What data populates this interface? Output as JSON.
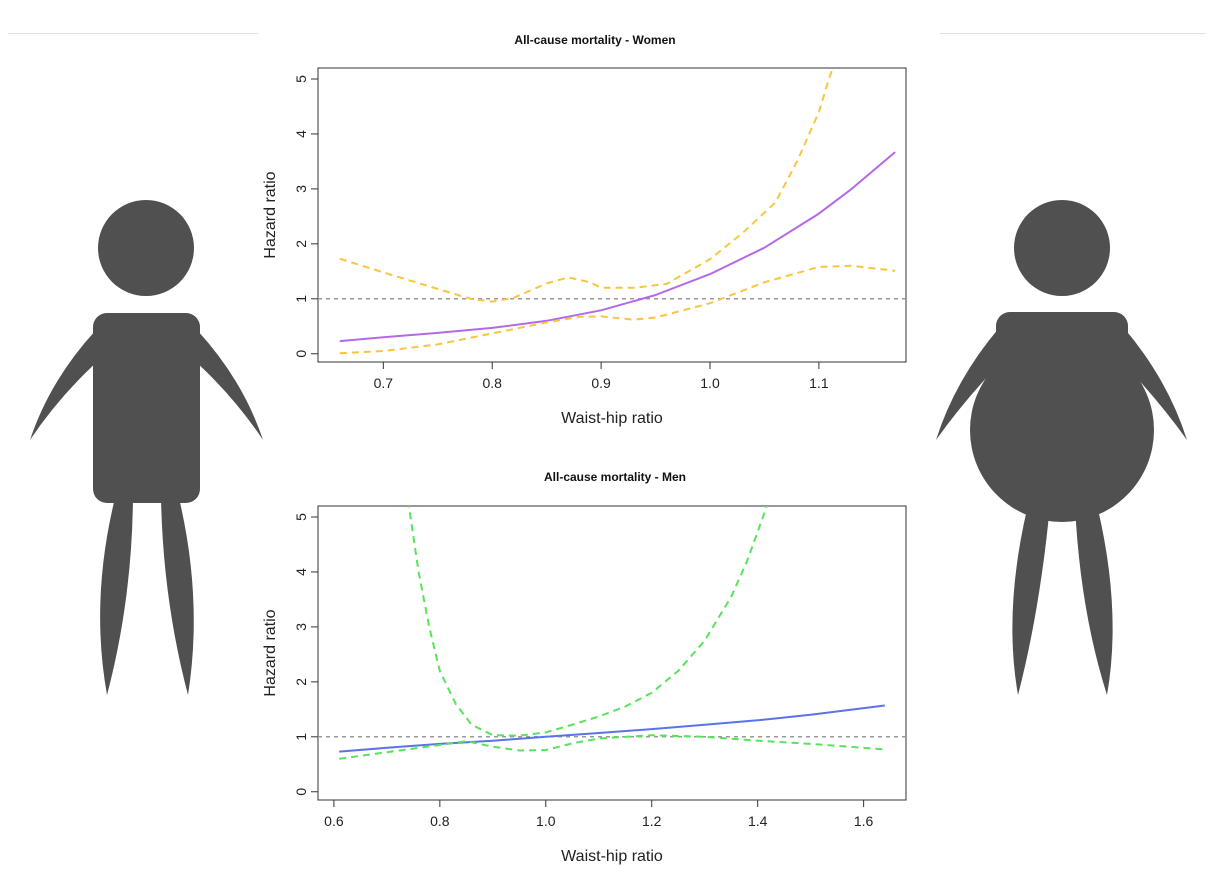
{
  "colors": {
    "silhouette": "#505050",
    "reference_line": "#999999",
    "women_estimate": "#b469e8",
    "women_ci": "#f7c540",
    "men_estimate": "#5b73e8",
    "men_ci": "#58e35a"
  },
  "illustrations": {
    "left": "slim-person-icon",
    "right": "abdominal-obesity-person-icon"
  },
  "chart_data": [
    {
      "type": "line",
      "title": "All-cause mortality - Women",
      "xlabel": "Waist-hip ratio",
      "ylabel": "Hazard ratio",
      "xlim": [
        0.64,
        1.18
      ],
      "ylim": [
        -0.15,
        5.2
      ],
      "xticks": [
        "0.7",
        "0.8",
        "0.9",
        "1.0",
        "1.1"
      ],
      "yticks": [
        "0",
        "1",
        "2",
        "3",
        "4",
        "5"
      ],
      "reference_line": 1,
      "series": [
        {
          "role": "estimate",
          "color": "#b469e8",
          "dash": "solid",
          "points": [
            [
              0.66,
              0.23
            ],
            [
              0.7,
              0.3
            ],
            [
              0.75,
              0.38
            ],
            [
              0.8,
              0.47
            ],
            [
              0.85,
              0.6
            ],
            [
              0.9,
              0.79
            ],
            [
              0.95,
              1.07
            ],
            [
              1.0,
              1.45
            ],
            [
              1.05,
              1.93
            ],
            [
              1.1,
              2.55
            ],
            [
              1.13,
              3.0
            ],
            [
              1.17,
              3.67
            ]
          ]
        },
        {
          "role": "ci-upper",
          "color": "#f7c540",
          "dash": "dashed",
          "points": [
            [
              0.66,
              1.73
            ],
            [
              0.7,
              1.48
            ],
            [
              0.75,
              1.18
            ],
            [
              0.78,
              1.0
            ],
            [
              0.8,
              0.95
            ],
            [
              0.82,
              1.02
            ],
            [
              0.85,
              1.28
            ],
            [
              0.87,
              1.39
            ],
            [
              0.89,
              1.3
            ],
            [
              0.9,
              1.2
            ],
            [
              0.93,
              1.2
            ],
            [
              0.96,
              1.27
            ],
            [
              1.0,
              1.72
            ],
            [
              1.03,
              2.2
            ],
            [
              1.06,
              2.75
            ],
            [
              1.08,
              3.5
            ],
            [
              1.1,
              4.4
            ],
            [
              1.11,
              5.05
            ],
            [
              1.115,
              5.3
            ]
          ]
        },
        {
          "role": "ci-lower",
          "color": "#f7c540",
          "dash": "dashed",
          "points": [
            [
              0.66,
              0.01
            ],
            [
              0.7,
              0.05
            ],
            [
              0.75,
              0.17
            ],
            [
              0.8,
              0.37
            ],
            [
              0.85,
              0.57
            ],
            [
              0.88,
              0.67
            ],
            [
              0.9,
              0.68
            ],
            [
              0.93,
              0.62
            ],
            [
              0.95,
              0.66
            ],
            [
              1.0,
              0.92
            ],
            [
              1.05,
              1.3
            ],
            [
              1.1,
              1.58
            ],
            [
              1.13,
              1.6
            ],
            [
              1.17,
              1.51
            ]
          ]
        }
      ]
    },
    {
      "type": "line",
      "title": "All-cause mortality - Men",
      "xlabel": "Waist-hip ratio",
      "ylabel": "Hazard ratio",
      "xlim": [
        0.57,
        1.68
      ],
      "ylim": [
        -0.15,
        5.2
      ],
      "xticks": [
        "0.6",
        "0.8",
        "1.0",
        "1.2",
        "1.4",
        "1.6"
      ],
      "yticks": [
        "0",
        "1",
        "2",
        "3",
        "4",
        "5"
      ],
      "reference_line": 1,
      "series": [
        {
          "role": "estimate",
          "color": "#5b73e8",
          "dash": "solid",
          "points": [
            [
              0.61,
              0.73
            ],
            [
              0.7,
              0.8
            ],
            [
              0.8,
              0.87
            ],
            [
              0.9,
              0.93
            ],
            [
              1.0,
              1.0
            ],
            [
              1.1,
              1.07
            ],
            [
              1.2,
              1.14
            ],
            [
              1.3,
              1.22
            ],
            [
              1.4,
              1.3
            ],
            [
              1.5,
              1.4
            ],
            [
              1.64,
              1.57
            ]
          ]
        },
        {
          "role": "ci-upper",
          "color": "#58e35a",
          "dash": "dashed",
          "points": [
            [
              0.74,
              5.3
            ],
            [
              0.76,
              4.0
            ],
            [
              0.78,
              3.0
            ],
            [
              0.8,
              2.2
            ],
            [
              0.83,
              1.6
            ],
            [
              0.86,
              1.22
            ],
            [
              0.9,
              1.03
            ],
            [
              0.95,
              1.02
            ],
            [
              1.0,
              1.08
            ],
            [
              1.05,
              1.22
            ],
            [
              1.1,
              1.37
            ],
            [
              1.15,
              1.55
            ],
            [
              1.2,
              1.8
            ],
            [
              1.25,
              2.2
            ],
            [
              1.3,
              2.75
            ],
            [
              1.35,
              3.55
            ],
            [
              1.38,
              4.2
            ],
            [
              1.41,
              5.0
            ],
            [
              1.42,
              5.3
            ]
          ]
        },
        {
          "role": "ci-lower",
          "color": "#58e35a",
          "dash": "dashed",
          "points": [
            [
              0.61,
              0.6
            ],
            [
              0.7,
              0.72
            ],
            [
              0.8,
              0.85
            ],
            [
              0.85,
              0.92
            ],
            [
              0.9,
              0.82
            ],
            [
              0.95,
              0.75
            ],
            [
              1.0,
              0.76
            ],
            [
              1.05,
              0.88
            ],
            [
              1.1,
              0.97
            ],
            [
              1.2,
              1.03
            ],
            [
              1.3,
              1.0
            ],
            [
              1.4,
              0.93
            ],
            [
              1.5,
              0.87
            ],
            [
              1.64,
              0.77
            ]
          ]
        }
      ]
    }
  ]
}
